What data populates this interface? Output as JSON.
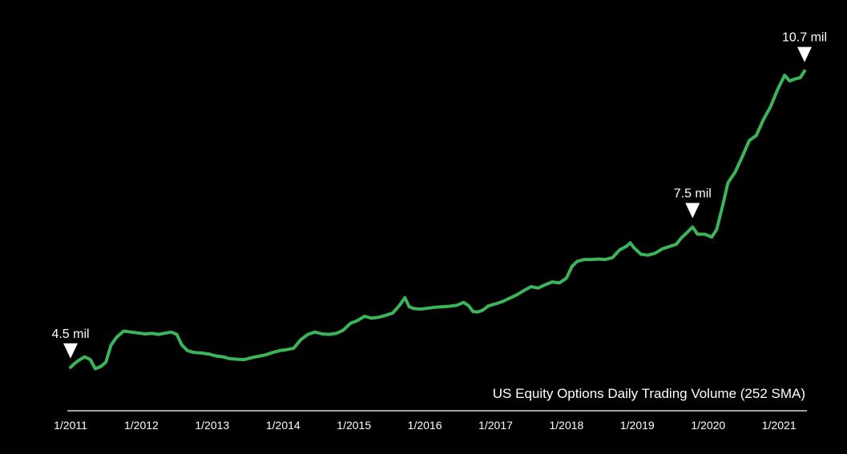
{
  "chart_data": {
    "type": "line",
    "title": "US Equity Options Daily Trading Volume (252 SMA)",
    "xlabel": "",
    "ylabel": "",
    "x_ticks": [
      "1/2011",
      "1/2012",
      "1/2013",
      "1/2014",
      "1/2015",
      "1/2016",
      "1/2017",
      "1/2018",
      "1/2019",
      "1/2020",
      "1/2021"
    ],
    "y_unit": "million contracts",
    "ylim": [
      3.6,
      11.2
    ],
    "grid": false,
    "legend": "none",
    "colors": {
      "line": "#3cb55a",
      "background": "#000000",
      "text": "#ffffff",
      "axis": "#ffffff"
    },
    "series": [
      {
        "values": [
          [
            2011.0,
            4.51
          ],
          [
            2011.05,
            4.58
          ],
          [
            2011.12,
            4.66
          ],
          [
            2011.2,
            4.73
          ],
          [
            2011.28,
            4.67
          ],
          [
            2011.35,
            4.48
          ],
          [
            2011.43,
            4.53
          ],
          [
            2011.5,
            4.62
          ],
          [
            2011.57,
            4.97
          ],
          [
            2011.65,
            5.14
          ],
          [
            2011.75,
            5.27
          ],
          [
            2011.85,
            5.25
          ],
          [
            2011.95,
            5.23
          ],
          [
            2012.05,
            5.21
          ],
          [
            2012.15,
            5.22
          ],
          [
            2012.25,
            5.2
          ],
          [
            2012.35,
            5.23
          ],
          [
            2012.42,
            5.25
          ],
          [
            2012.5,
            5.2
          ],
          [
            2012.57,
            4.98
          ],
          [
            2012.65,
            4.86
          ],
          [
            2012.75,
            4.82
          ],
          [
            2012.85,
            4.81
          ],
          [
            2012.95,
            4.79
          ],
          [
            2013.05,
            4.75
          ],
          [
            2013.15,
            4.73
          ],
          [
            2013.25,
            4.69
          ],
          [
            2013.35,
            4.68
          ],
          [
            2013.45,
            4.67
          ],
          [
            2013.55,
            4.71
          ],
          [
            2013.65,
            4.74
          ],
          [
            2013.75,
            4.77
          ],
          [
            2013.85,
            4.82
          ],
          [
            2013.95,
            4.86
          ],
          [
            2014.05,
            4.88
          ],
          [
            2014.15,
            4.91
          ],
          [
            2014.25,
            5.09
          ],
          [
            2014.35,
            5.2
          ],
          [
            2014.45,
            5.25
          ],
          [
            2014.55,
            5.21
          ],
          [
            2014.65,
            5.2
          ],
          [
            2014.75,
            5.22
          ],
          [
            2014.85,
            5.29
          ],
          [
            2014.95,
            5.43
          ],
          [
            2015.05,
            5.49
          ],
          [
            2015.15,
            5.58
          ],
          [
            2015.25,
            5.54
          ],
          [
            2015.35,
            5.56
          ],
          [
            2015.45,
            5.6
          ],
          [
            2015.55,
            5.65
          ],
          [
            2015.65,
            5.82
          ],
          [
            2015.72,
            5.97
          ],
          [
            2015.78,
            5.78
          ],
          [
            2015.85,
            5.74
          ],
          [
            2015.95,
            5.73
          ],
          [
            2016.05,
            5.75
          ],
          [
            2016.15,
            5.77
          ],
          [
            2016.25,
            5.78
          ],
          [
            2016.35,
            5.79
          ],
          [
            2016.45,
            5.81
          ],
          [
            2016.55,
            5.87
          ],
          [
            2016.62,
            5.8
          ],
          [
            2016.68,
            5.68
          ],
          [
            2016.75,
            5.67
          ],
          [
            2016.82,
            5.71
          ],
          [
            2016.9,
            5.8
          ],
          [
            2017.0,
            5.84
          ],
          [
            2017.1,
            5.89
          ],
          [
            2017.2,
            5.96
          ],
          [
            2017.3,
            6.03
          ],
          [
            2017.4,
            6.12
          ],
          [
            2017.5,
            6.2
          ],
          [
            2017.6,
            6.17
          ],
          [
            2017.7,
            6.24
          ],
          [
            2017.8,
            6.3
          ],
          [
            2017.9,
            6.28
          ],
          [
            2018.0,
            6.38
          ],
          [
            2018.08,
            6.63
          ],
          [
            2018.15,
            6.73
          ],
          [
            2018.25,
            6.77
          ],
          [
            2018.35,
            6.77
          ],
          [
            2018.45,
            6.78
          ],
          [
            2018.55,
            6.77
          ],
          [
            2018.65,
            6.81
          ],
          [
            2018.75,
            6.97
          ],
          [
            2018.85,
            7.05
          ],
          [
            2018.9,
            7.12
          ],
          [
            2018.95,
            7.02
          ],
          [
            2019.05,
            6.88
          ],
          [
            2019.15,
            6.86
          ],
          [
            2019.25,
            6.9
          ],
          [
            2019.35,
            6.99
          ],
          [
            2019.45,
            7.04
          ],
          [
            2019.55,
            7.09
          ],
          [
            2019.62,
            7.22
          ],
          [
            2019.72,
            7.36
          ],
          [
            2019.78,
            7.45
          ],
          [
            2019.85,
            7.3
          ],
          [
            2019.95,
            7.3
          ],
          [
            2020.05,
            7.24
          ],
          [
            2020.12,
            7.4
          ],
          [
            2020.2,
            7.87
          ],
          [
            2020.28,
            8.38
          ],
          [
            2020.38,
            8.6
          ],
          [
            2020.48,
            8.92
          ],
          [
            2020.58,
            9.26
          ],
          [
            2020.68,
            9.37
          ],
          [
            2020.78,
            9.7
          ],
          [
            2020.88,
            9.97
          ],
          [
            2020.98,
            10.33
          ],
          [
            2021.08,
            10.63
          ],
          [
            2021.15,
            10.51
          ],
          [
            2021.22,
            10.55
          ],
          [
            2021.3,
            10.58
          ],
          [
            2021.36,
            10.72
          ]
        ]
      }
    ],
    "annotations": [
      {
        "label": "4.5 mil",
        "x": 2011.0,
        "y": 4.51
      },
      {
        "label": "7.5 mil",
        "x": 2019.78,
        "y": 7.45
      },
      {
        "label": "10.7 mil",
        "x": 2021.36,
        "y": 10.72
      }
    ]
  }
}
